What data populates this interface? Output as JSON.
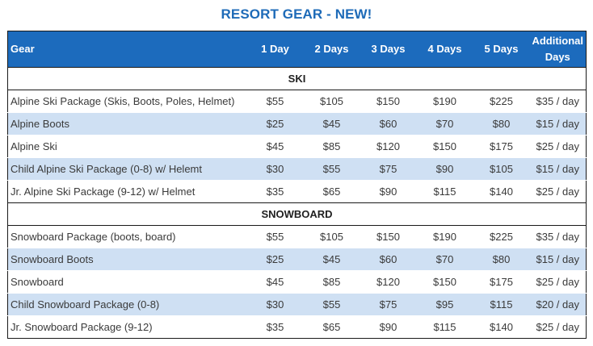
{
  "title": "RESORT GEAR - NEW!",
  "header": {
    "gear": "Gear",
    "d1": "1 Day",
    "d2": "2 Days",
    "d3": "3 Days",
    "d4": "4 Days",
    "d5": "5 Days",
    "add_line1": "Additional",
    "add_line2": "Days"
  },
  "sections": [
    {
      "name": "SKI",
      "rows": [
        {
          "gear": "Alpine Ski Package (Skis, Boots, Poles, Helmet)",
          "p": [
            "$55",
            "$105",
            "$150",
            "$190",
            "$225",
            "$35 / day"
          ]
        },
        {
          "gear": "Alpine Boots",
          "p": [
            "$25",
            "$45",
            "$60",
            "$70",
            "$80",
            "$15 / day"
          ]
        },
        {
          "gear": "Alpine Ski",
          "p": [
            "$45",
            "$85",
            "$120",
            "$150",
            "$175",
            "$25 / day"
          ]
        },
        {
          "gear": "Child Alpine Ski Package (0-8) w/ Helemt",
          "p": [
            "$30",
            "$55",
            "$75",
            "$90",
            "$105",
            "$15 / day"
          ]
        },
        {
          "gear": "Jr. Alpine Ski Package (9-12) w/ Helmet",
          "p": [
            "$35",
            "$65",
            "$90",
            "$115",
            "$140",
            "$25 / day"
          ]
        }
      ]
    },
    {
      "name": "SNOWBOARD",
      "rows": [
        {
          "gear": "Snowboard Package (boots, board)",
          "p": [
            "$55",
            "$105",
            "$150",
            "$190",
            "$225",
            "$35 / day"
          ]
        },
        {
          "gear": "Snowboard Boots",
          "p": [
            "$25",
            "$45",
            "$60",
            "$70",
            "$80",
            "$15 / day"
          ]
        },
        {
          "gear": "Snowboard",
          "p": [
            "$45",
            "$85",
            "$120",
            "$150",
            "$175",
            "$25 / day"
          ]
        },
        {
          "gear": "Child Snowboard Package (0-8)",
          "p": [
            "$30",
            "$55",
            "$75",
            "$95",
            "$115",
            "$20 / day"
          ]
        },
        {
          "gear": "Jr. Snowboard Package (9-12)",
          "p": [
            "$35",
            "$65",
            "$90",
            "$115",
            "$140",
            "$25 / day"
          ]
        }
      ]
    }
  ]
}
